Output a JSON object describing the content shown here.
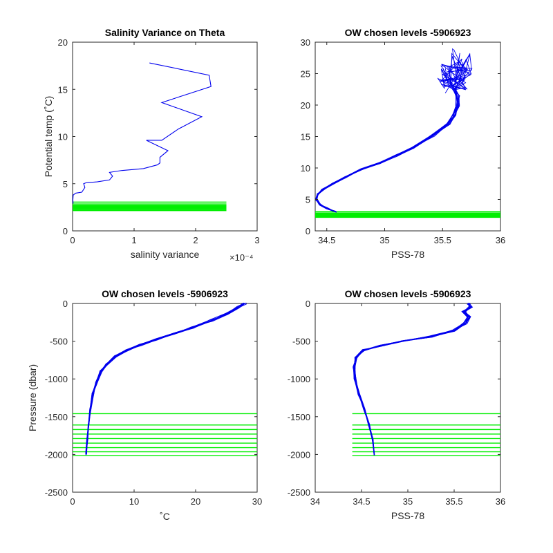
{
  "colors": {
    "profile": "#0000ee",
    "levels": "#00ee00",
    "axis": "#262626"
  },
  "chart_data": [
    {
      "type": "line",
      "title": "Salinity Variance on Theta",
      "xlabel": "salinity variance",
      "ylabel": "Potential temp (˚C)",
      "x_multiplier": "×10⁻⁴",
      "xlim": [
        0,
        0.0003
      ],
      "ylim": [
        0,
        20
      ],
      "xticks": [
        0,
        0.0001,
        0.0002,
        0.0003
      ],
      "xtick_labels": [
        "0",
        "1",
        "2",
        "3"
      ],
      "yticks": [
        0,
        5,
        10,
        15,
        20
      ],
      "ytick_labels": [
        "0",
        "5",
        "10",
        "15",
        "20"
      ],
      "series": [
        {
          "x": [
            8e-07,
            5e-07,
            1e-06,
            5e-06,
            1.5e-05,
            2e-05,
            1.8e-05,
            2.2e-05,
            4e-05,
            6e-05,
            6.5e-05,
            6e-05,
            8e-05,
            0.000115,
            0.000138,
            0.000142,
            0.000142,
            0.000155,
            0.00012,
            0.000145,
            0.000172,
            0.00021,
            0.000145,
            0.000225,
            0.000222,
            0.000125
          ],
          "y": [
            2.9,
            3.3,
            3.8,
            4.0,
            4.1,
            4.6,
            5.0,
            5.1,
            5.2,
            5.4,
            5.8,
            6.2,
            6.4,
            6.6,
            7.0,
            7.2,
            7.8,
            8.5,
            9.6,
            9.6,
            10.8,
            12.1,
            13.6,
            15.3,
            16.5,
            17.8
          ]
        }
      ],
      "level_lines": {
        "x_range": [
          0,
          0.00025
        ],
        "y": [
          2.15,
          2.25,
          2.35,
          2.42,
          2.5,
          2.58,
          2.65,
          2.72,
          2.85,
          3.05
        ]
      }
    },
    {
      "type": "line",
      "title": "OW chosen levels -5906923",
      "xlabel": "PSS-78",
      "ylabel": "",
      "xlim": [
        34.4,
        36
      ],
      "ylim": [
        0,
        30
      ],
      "xticks": [
        34.5,
        35,
        35.5,
        36
      ],
      "xtick_labels": [
        "34.5",
        "35",
        "35.5",
        "36"
      ],
      "yticks": [
        0,
        5,
        10,
        15,
        20,
        25,
        30
      ],
      "ytick_labels": [
        "0",
        "5",
        "10",
        "15",
        "20",
        "25",
        "30"
      ],
      "profile": {
        "count": 14,
        "x": [
          34.58,
          34.5,
          34.44,
          34.41,
          34.42,
          34.46,
          34.55,
          34.65,
          34.8,
          34.95,
          35.1,
          35.25,
          35.42,
          35.55,
          35.6,
          35.63,
          35.63,
          35.6
        ],
        "y": [
          3.0,
          3.6,
          4.2,
          5.0,
          5.8,
          6.5,
          7.5,
          8.5,
          9.8,
          10.8,
          12.0,
          13.2,
          15.2,
          17.0,
          18.5,
          20.0,
          21.5,
          22.5
        ],
        "top_x": [
          35.58,
          35.52,
          35.66,
          35.6,
          35.7,
          35.55,
          35.72,
          35.62,
          35.68,
          35.5
        ],
        "top_y": [
          23.5,
          25.8,
          26.5,
          24.2,
          27.5,
          22.8,
          25.0,
          28.3,
          23.2,
          24.0
        ]
      },
      "level_lines": {
        "x_range": [
          34.4,
          36
        ],
        "y": [
          2.15,
          2.25,
          2.35,
          2.42,
          2.5,
          2.58,
          2.65,
          2.72,
          2.85,
          3.05
        ]
      }
    },
    {
      "type": "line",
      "title": "OW chosen levels -5906923",
      "xlabel": "˚C",
      "ylabel": "Pressure (dbar)",
      "xlim": [
        0,
        30
      ],
      "ylim": [
        -2500,
        0
      ],
      "xticks": [
        0,
        10,
        20,
        30
      ],
      "xtick_labels": [
        "0",
        "10",
        "20",
        "30"
      ],
      "yticks": [
        -2500,
        -2000,
        -1500,
        -1000,
        -500,
        0
      ],
      "ytick_labels": [
        "-2500",
        "-2000",
        "-1500",
        "-1000",
        "-500",
        "0"
      ],
      "profile": {
        "count": 14,
        "x": [
          2.2,
          2.4,
          2.6,
          2.9,
          3.3,
          3.9,
          4.6,
          5.6,
          7.0,
          8.8,
          11.0,
          13.5,
          16.5,
          19.5,
          22.5,
          25.0,
          27.0,
          28.0
        ],
        "y": [
          -2000,
          -1800,
          -1600,
          -1400,
          -1200,
          -1050,
          -900,
          -800,
          -700,
          -620,
          -550,
          -480,
          -400,
          -320,
          -230,
          -140,
          -50,
          0
        ]
      },
      "level_lines": {
        "x_range": [
          0,
          30
        ],
        "y": [
          -1460,
          -1610,
          -1670,
          -1730,
          -1790,
          -1850,
          -1910,
          -1965,
          -2015
        ]
      }
    },
    {
      "type": "line",
      "title": "OW chosen levels -5906923",
      "xlabel": "PSS-78",
      "ylabel": "",
      "xlim": [
        34,
        36
      ],
      "ylim": [
        -2500,
        0
      ],
      "xticks": [
        34,
        34.5,
        35,
        35.5,
        36
      ],
      "xtick_labels": [
        "34",
        "34.5",
        "35",
        "35.5",
        "36"
      ],
      "yticks": [
        -2500,
        -2000,
        -1500,
        -1000,
        -500,
        0
      ],
      "ytick_labels": [
        "-2500",
        "-2000",
        "-1500",
        "-1000",
        "-500",
        "0"
      ],
      "profile": {
        "count": 14,
        "x": [
          34.64,
          34.62,
          34.58,
          34.53,
          34.47,
          34.43,
          34.42,
          34.44,
          34.52,
          34.7,
          34.95,
          35.25,
          35.5,
          35.62,
          35.66,
          35.6,
          35.68,
          35.65
        ],
        "y": [
          -2000,
          -1800,
          -1600,
          -1400,
          -1200,
          -1000,
          -850,
          -720,
          -620,
          -560,
          -500,
          -440,
          -360,
          -260,
          -180,
          -110,
          -50,
          0
        ]
      },
      "level_lines": {
        "x_range": [
          34.4,
          36
        ],
        "y": [
          -1460,
          -1610,
          -1670,
          -1730,
          -1790,
          -1850,
          -1910,
          -1965,
          -2015
        ]
      }
    }
  ]
}
